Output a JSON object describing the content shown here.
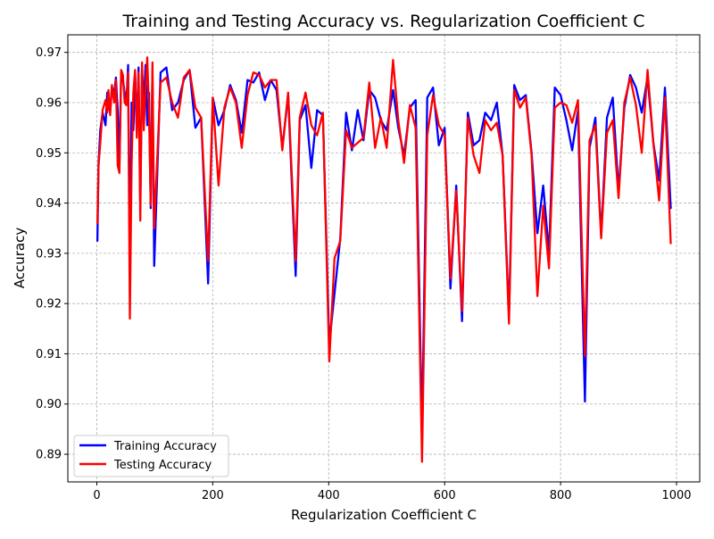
{
  "chart_data": {
    "type": "line",
    "title": "Training and Testing Accuracy vs. Regularization Coefficient C",
    "xlabel": "Regularization Coefficient C",
    "ylabel": "Accuracy",
    "xlim": [
      -50,
      1040
    ],
    "ylim": [
      0.8845,
      0.9735
    ],
    "xticks": [
      0,
      200,
      400,
      600,
      800,
      1000
    ],
    "xtick_labels": [
      "0",
      "200",
      "400",
      "600",
      "800",
      "1000"
    ],
    "yticks": [
      0.89,
      0.9,
      0.91,
      0.92,
      0.93,
      0.94,
      0.95,
      0.96,
      0.97
    ],
    "ytick_labels": [
      "0.89",
      "0.90",
      "0.91",
      "0.92",
      "0.93",
      "0.94",
      "0.95",
      "0.96",
      "0.97"
    ],
    "grid": true,
    "legend_position": "lower-left",
    "series": [
      {
        "name": "Training Accuracy",
        "color": "#0000ff",
        "x": [
          1,
          3,
          6,
          10,
          15,
          18,
          20,
          23,
          26,
          30,
          33,
          36,
          39,
          42,
          45,
          48,
          51,
          54,
          57,
          60,
          63,
          66,
          69,
          72,
          75,
          78,
          81,
          84,
          87,
          90,
          93,
          96,
          99,
          110,
          120,
          130,
          140,
          150,
          160,
          170,
          180,
          192,
          200,
          210,
          220,
          230,
          240,
          250,
          260,
          270,
          280,
          290,
          300,
          310,
          320,
          330,
          343,
          350,
          360,
          370,
          380,
          390,
          401,
          410,
          420,
          430,
          440,
          450,
          460,
          470,
          480,
          490,
          500,
          511,
          520,
          530,
          540,
          550,
          561,
          570,
          580,
          590,
          600,
          610,
          620,
          630,
          640,
          650,
          660,
          670,
          680,
          690,
          700,
          711,
          720,
          730,
          740,
          750,
          760,
          770,
          780,
          790,
          800,
          810,
          820,
          830,
          842,
          850,
          860,
          870,
          880,
          890,
          900,
          910,
          920,
          930,
          940,
          950,
          960,
          970,
          980,
          990
        ],
        "values": [
          0.9325,
          0.948,
          0.9545,
          0.958,
          0.9555,
          0.962,
          0.9595,
          0.958,
          0.963,
          0.962,
          0.965,
          0.9585,
          0.9475,
          0.966,
          0.9645,
          0.962,
          0.96,
          0.9675,
          0.9265,
          0.96,
          0.9545,
          0.9655,
          0.9545,
          0.967,
          0.9395,
          0.9665,
          0.9595,
          0.9675,
          0.9555,
          0.962,
          0.939,
          0.9665,
          0.9275,
          0.966,
          0.967,
          0.9585,
          0.96,
          0.9645,
          0.9665,
          0.955,
          0.957,
          0.924,
          0.961,
          0.9555,
          0.9585,
          0.9635,
          0.9605,
          0.954,
          0.9645,
          0.964,
          0.966,
          0.9605,
          0.9645,
          0.9625,
          0.951,
          0.9615,
          0.9255,
          0.9565,
          0.9595,
          0.947,
          0.9585,
          0.9575,
          0.912,
          0.922,
          0.933,
          0.958,
          0.9505,
          0.9585,
          0.9525,
          0.9625,
          0.961,
          0.9565,
          0.9545,
          0.9625,
          0.955,
          0.9495,
          0.959,
          0.9605,
          0.894,
          0.961,
          0.963,
          0.9515,
          0.955,
          0.923,
          0.9435,
          0.9165,
          0.958,
          0.9515,
          0.9525,
          0.958,
          0.9565,
          0.96,
          0.9495,
          0.9175,
          0.9635,
          0.9605,
          0.9615,
          0.95,
          0.934,
          0.9435,
          0.93,
          0.963,
          0.9615,
          0.9565,
          0.9505,
          0.9585,
          0.9005,
          0.951,
          0.957,
          0.9335,
          0.957,
          0.961,
          0.9425,
          0.959,
          0.9655,
          0.963,
          0.958,
          0.965,
          0.952,
          0.9445,
          0.963,
          0.939
        ]
      },
      {
        "name": "Testing Accuracy",
        "color": "#ff0000",
        "x": [
          1,
          3,
          6,
          10,
          15,
          18,
          20,
          23,
          26,
          30,
          33,
          36,
          39,
          42,
          45,
          48,
          51,
          54,
          57,
          60,
          63,
          66,
          69,
          72,
          75,
          78,
          81,
          84,
          87,
          90,
          93,
          96,
          99,
          110,
          120,
          130,
          140,
          150,
          160,
          170,
          180,
          192,
          200,
          210,
          220,
          230,
          240,
          250,
          260,
          270,
          280,
          290,
          300,
          310,
          320,
          330,
          343,
          350,
          360,
          370,
          380,
          390,
          401,
          410,
          420,
          430,
          440,
          450,
          460,
          470,
          480,
          490,
          500,
          511,
          520,
          530,
          540,
          550,
          561,
          570,
          580,
          590,
          600,
          610,
          620,
          630,
          640,
          650,
          660,
          670,
          680,
          690,
          700,
          711,
          720,
          730,
          740,
          750,
          760,
          770,
          780,
          790,
          800,
          810,
          820,
          830,
          842,
          850,
          860,
          870,
          880,
          890,
          900,
          910,
          920,
          930,
          940,
          950,
          960,
          970,
          980,
          990
        ],
        "values": [
          0.936,
          0.9475,
          0.952,
          0.9585,
          0.9605,
          0.958,
          0.9625,
          0.9575,
          0.9635,
          0.96,
          0.9645,
          0.9475,
          0.946,
          0.9665,
          0.9655,
          0.96,
          0.9595,
          0.966,
          0.917,
          0.9475,
          0.962,
          0.9665,
          0.953,
          0.966,
          0.9365,
          0.968,
          0.9545,
          0.963,
          0.969,
          0.958,
          0.9395,
          0.968,
          0.935,
          0.964,
          0.965,
          0.96,
          0.957,
          0.965,
          0.9665,
          0.959,
          0.957,
          0.9285,
          0.961,
          0.9435,
          0.959,
          0.963,
          0.96,
          0.951,
          0.9615,
          0.966,
          0.9655,
          0.963,
          0.9645,
          0.9645,
          0.9505,
          0.962,
          0.9285,
          0.957,
          0.962,
          0.9555,
          0.9535,
          0.958,
          0.9085,
          0.929,
          0.9325,
          0.9545,
          0.951,
          0.952,
          0.953,
          0.964,
          0.951,
          0.957,
          0.951,
          0.9685,
          0.9565,
          0.948,
          0.9595,
          0.955,
          0.8885,
          0.9535,
          0.9615,
          0.9555,
          0.9535,
          0.925,
          0.9425,
          0.9185,
          0.957,
          0.9495,
          0.946,
          0.9565,
          0.9545,
          0.956,
          0.9495,
          0.916,
          0.9625,
          0.959,
          0.961,
          0.9495,
          0.9215,
          0.9395,
          0.927,
          0.959,
          0.96,
          0.9595,
          0.956,
          0.9605,
          0.9095,
          0.9525,
          0.9555,
          0.933,
          0.954,
          0.9565,
          0.941,
          0.96,
          0.965,
          0.9595,
          0.95,
          0.9665,
          0.952,
          0.9405,
          0.961,
          0.932
        ]
      }
    ]
  }
}
